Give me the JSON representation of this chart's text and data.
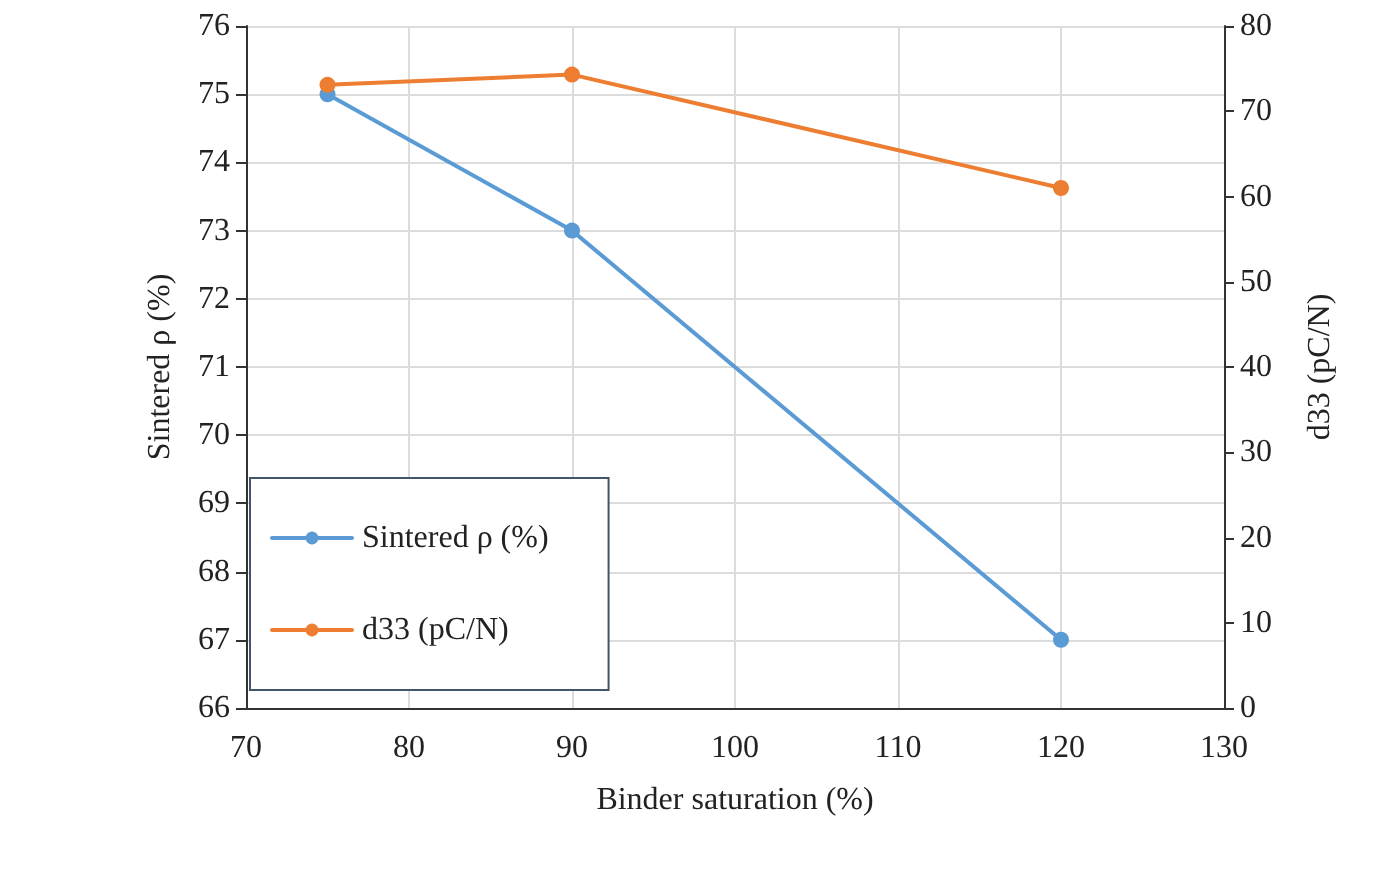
{
  "chart_data": {
    "type": "line",
    "xlabel": "Binder saturation (%)",
    "ylabel": "Sintered ρ (%)",
    "y2label": "d33 (pC/N)",
    "x": [
      75,
      90,
      120
    ],
    "series": [
      {
        "name": "Sintered ρ (%)",
        "color": "#5b9bd5",
        "values": [
          75,
          73,
          67
        ]
      },
      {
        "name": "d33 (pC/N)",
        "color": "#ed7d31",
        "values": [
          73.1,
          74.3,
          61
        ],
        "axis": "y2"
      }
    ],
    "xlim": [
      70,
      130
    ],
    "xticks": [
      70,
      80,
      90,
      100,
      110,
      120,
      130
    ],
    "ylim": [
      66,
      76
    ],
    "yticks": [
      66,
      67,
      68,
      69,
      70,
      71,
      72,
      73,
      74,
      75,
      76
    ],
    "y2lim": [
      0,
      80
    ],
    "y2ticks": [
      0,
      10,
      20,
      30,
      40,
      50,
      60,
      70,
      80
    ],
    "grid": true,
    "legend": "bottom left",
    "marker": "circle",
    "line_style": "solid"
  }
}
